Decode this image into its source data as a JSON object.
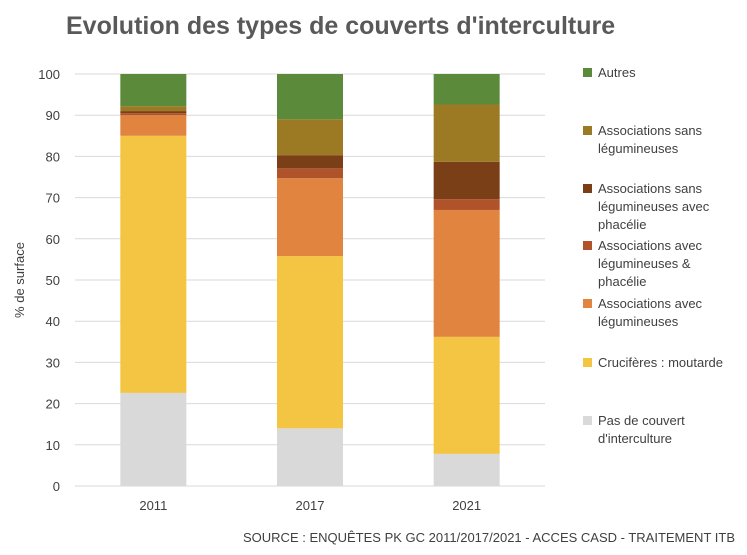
{
  "chart_data": {
    "type": "bar",
    "stacked": true,
    "title": "Evolution des types de couverts d'interculture",
    "ylabel": "% de surface",
    "xlabel": "",
    "ylim": [
      0,
      100
    ],
    "yticks": [
      0,
      10,
      20,
      30,
      40,
      50,
      60,
      70,
      80,
      90,
      100
    ],
    "grid": true,
    "legend_position": "right",
    "categories": [
      "2011",
      "2017",
      "2021"
    ],
    "series": [
      {
        "name": "Pas de couvert d'interculture",
        "color": "#d9d9d9",
        "values": [
          22.6,
          14.0,
          7.8
        ]
      },
      {
        "name": "Crucifères : moutarde",
        "color": "#f4c542",
        "values": [
          62.4,
          41.8,
          28.4
        ]
      },
      {
        "name": "Associations avec légumineuses",
        "color": "#e0843f",
        "values": [
          5.0,
          18.9,
          30.8
        ]
      },
      {
        "name": "Associations avec légumineuses & phacélie",
        "color": "#b0532a",
        "values": [
          0.5,
          2.4,
          2.6
        ]
      },
      {
        "name": "Associations sans légumineuses avec phacélie",
        "color": "#7a3f17",
        "values": [
          0.5,
          3.2,
          9.1
        ]
      },
      {
        "name": "Associations sans légumineuses",
        "color": "#9c7a24",
        "values": [
          1.2,
          8.7,
          13.9
        ]
      },
      {
        "name": "Autres",
        "color": "#5a8a3a",
        "values": [
          7.8,
          11.0,
          7.4
        ]
      }
    ],
    "source": "SOURCE : ENQUÊTES PK GC 2011/2017/2021 - ACCES CASD - TRAITEMENT ITB"
  }
}
